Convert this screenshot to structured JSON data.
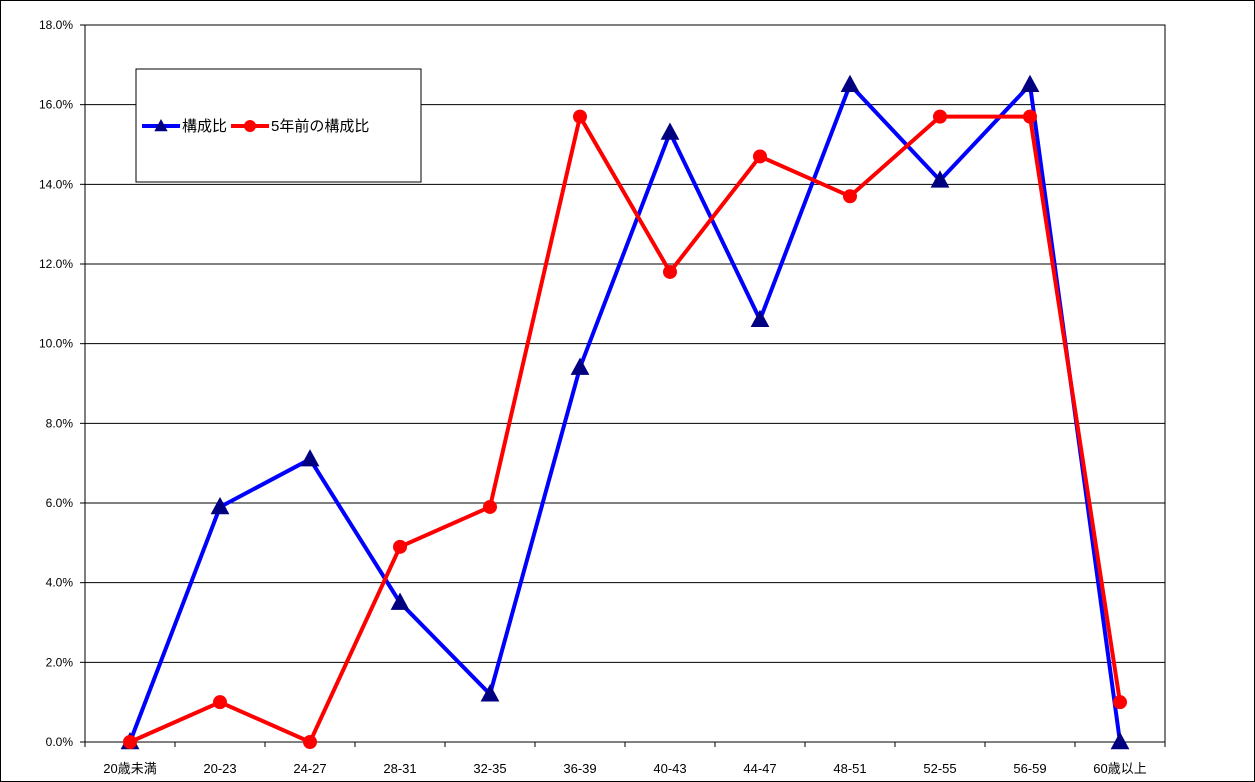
{
  "chart_data": {
    "type": "line",
    "categories": [
      "20歳未満",
      "20-23",
      "24-27",
      "28-31",
      "32-35",
      "36-39",
      "40-43",
      "44-47",
      "48-51",
      "52-55",
      "56-59",
      "60歳以上"
    ],
    "series": [
      {
        "name": "構成比",
        "color": "#0000ff",
        "marker": "triangle",
        "marker_color": "#000080",
        "values": [
          0.0,
          5.9,
          7.1,
          3.5,
          1.2,
          9.4,
          15.3,
          10.6,
          16.5,
          14.1,
          16.5,
          0.0
        ]
      },
      {
        "name": "5年前の構成比",
        "color": "#ff0000",
        "marker": "circle",
        "marker_color": "#ff0000",
        "values": [
          0.0,
          1.0,
          0.0,
          4.9,
          5.9,
          15.7,
          11.8,
          14.7,
          13.7,
          15.7,
          15.7,
          1.0
        ]
      }
    ],
    "ylim": [
      0,
      18
    ],
    "ytick_step": 2,
    "ytick_labels": [
      "0.0%",
      "2.0%",
      "4.0%",
      "6.0%",
      "8.0%",
      "10.0%",
      "12.0%",
      "14.0%",
      "16.0%",
      "18.0%"
    ],
    "title": "",
    "xlabel": "",
    "ylabel": "",
    "grid": true,
    "legend_position": "top-left"
  }
}
